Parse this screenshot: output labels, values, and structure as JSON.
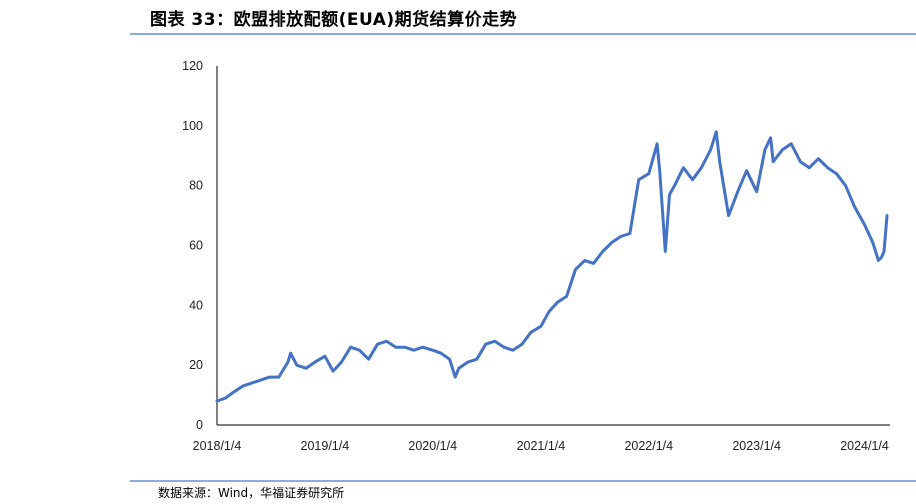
{
  "header": {
    "title": "图表 33：欧盟排放配额(EUA)期货结算价走势"
  },
  "footer": {
    "source": "数据来源：Wind，华福证券研究所"
  },
  "colors": {
    "line": "#4472C4",
    "rule": "#8FAADC",
    "axis": "#000000"
  },
  "chart_data": {
    "type": "line",
    "title": "",
    "xlabel": "",
    "ylabel": "",
    "ylim": [
      0,
      120
    ],
    "yticks": [
      0,
      20,
      40,
      60,
      80,
      100,
      120
    ],
    "xticks": [
      "2018/1/4",
      "2019/1/4",
      "2020/1/4",
      "2021/1/4",
      "2022/1/4",
      "2023/1/4",
      "2024/1/4"
    ],
    "xlim": [
      "2018/1/4",
      "2024/3/20"
    ],
    "grid": false,
    "legend": "none",
    "series": [
      {
        "x": [
          "2018/1/4",
          "2018/2/1",
          "2018/3/1",
          "2018/4/1",
          "2018/5/1",
          "2018/6/1",
          "2018/7/1",
          "2018/8/1",
          "2018/9/1",
          "2018/9/10",
          "2018/10/1",
          "2018/11/1",
          "2018/12/1",
          "2019/1/4",
          "2019/2/1",
          "2019/3/1",
          "2019/4/1",
          "2019/5/1",
          "2019/6/1",
          "2019/7/1",
          "2019/8/1",
          "2019/9/1",
          "2019/10/1",
          "2019/11/1",
          "2019/12/1",
          "2020/1/4",
          "2020/2/1",
          "2020/3/1",
          "2020/3/20",
          "2020/4/1",
          "2020/5/1",
          "2020/6/1",
          "2020/7/1",
          "2020/8/1",
          "2020/9/1",
          "2020/10/1",
          "2020/11/1",
          "2020/12/1",
          "2021/1/4",
          "2021/2/1",
          "2021/3/1",
          "2021/4/1",
          "2021/5/1",
          "2021/6/1",
          "2021/7/1",
          "2021/8/1",
          "2021/9/1",
          "2021/10/1",
          "2021/11/1",
          "2021/12/1",
          "2022/1/4",
          "2022/2/1",
          "2022/2/10",
          "2022/3/1",
          "2022/3/15",
          "2022/4/1",
          "2022/5/1",
          "2022/6/1",
          "2022/7/1",
          "2022/8/1",
          "2022/8/20",
          "2022/9/1",
          "2022/10/1",
          "2022/11/1",
          "2022/12/1",
          "2023/1/4",
          "2023/2/1",
          "2023/2/20",
          "2023/3/1",
          "2023/4/1",
          "2023/5/1",
          "2023/6/1",
          "2023/7/1",
          "2023/8/1",
          "2023/9/1",
          "2023/10/1",
          "2023/11/1",
          "2023/12/1",
          "2024/1/4",
          "2024/2/1",
          "2024/2/20",
          "2024/3/1",
          "2024/3/10",
          "2024/3/20"
        ],
        "values": [
          8,
          9,
          11,
          13,
          14,
          15,
          16,
          16,
          21,
          24,
          20,
          19,
          21,
          23,
          18,
          21,
          26,
          25,
          22,
          27,
          28,
          26,
          26,
          25,
          26,
          25,
          24,
          22,
          16,
          19,
          21,
          22,
          27,
          28,
          26,
          25,
          27,
          31,
          33,
          38,
          41,
          43,
          52,
          55,
          54,
          58,
          61,
          63,
          64,
          82,
          84,
          94,
          85,
          58,
          77,
          80,
          86,
          82,
          86,
          92,
          98,
          88,
          70,
          78,
          85,
          78,
          92,
          96,
          88,
          92,
          94,
          88,
          86,
          89,
          86,
          84,
          80,
          73,
          67,
          61,
          55,
          56,
          58,
          70
        ]
      }
    ]
  }
}
